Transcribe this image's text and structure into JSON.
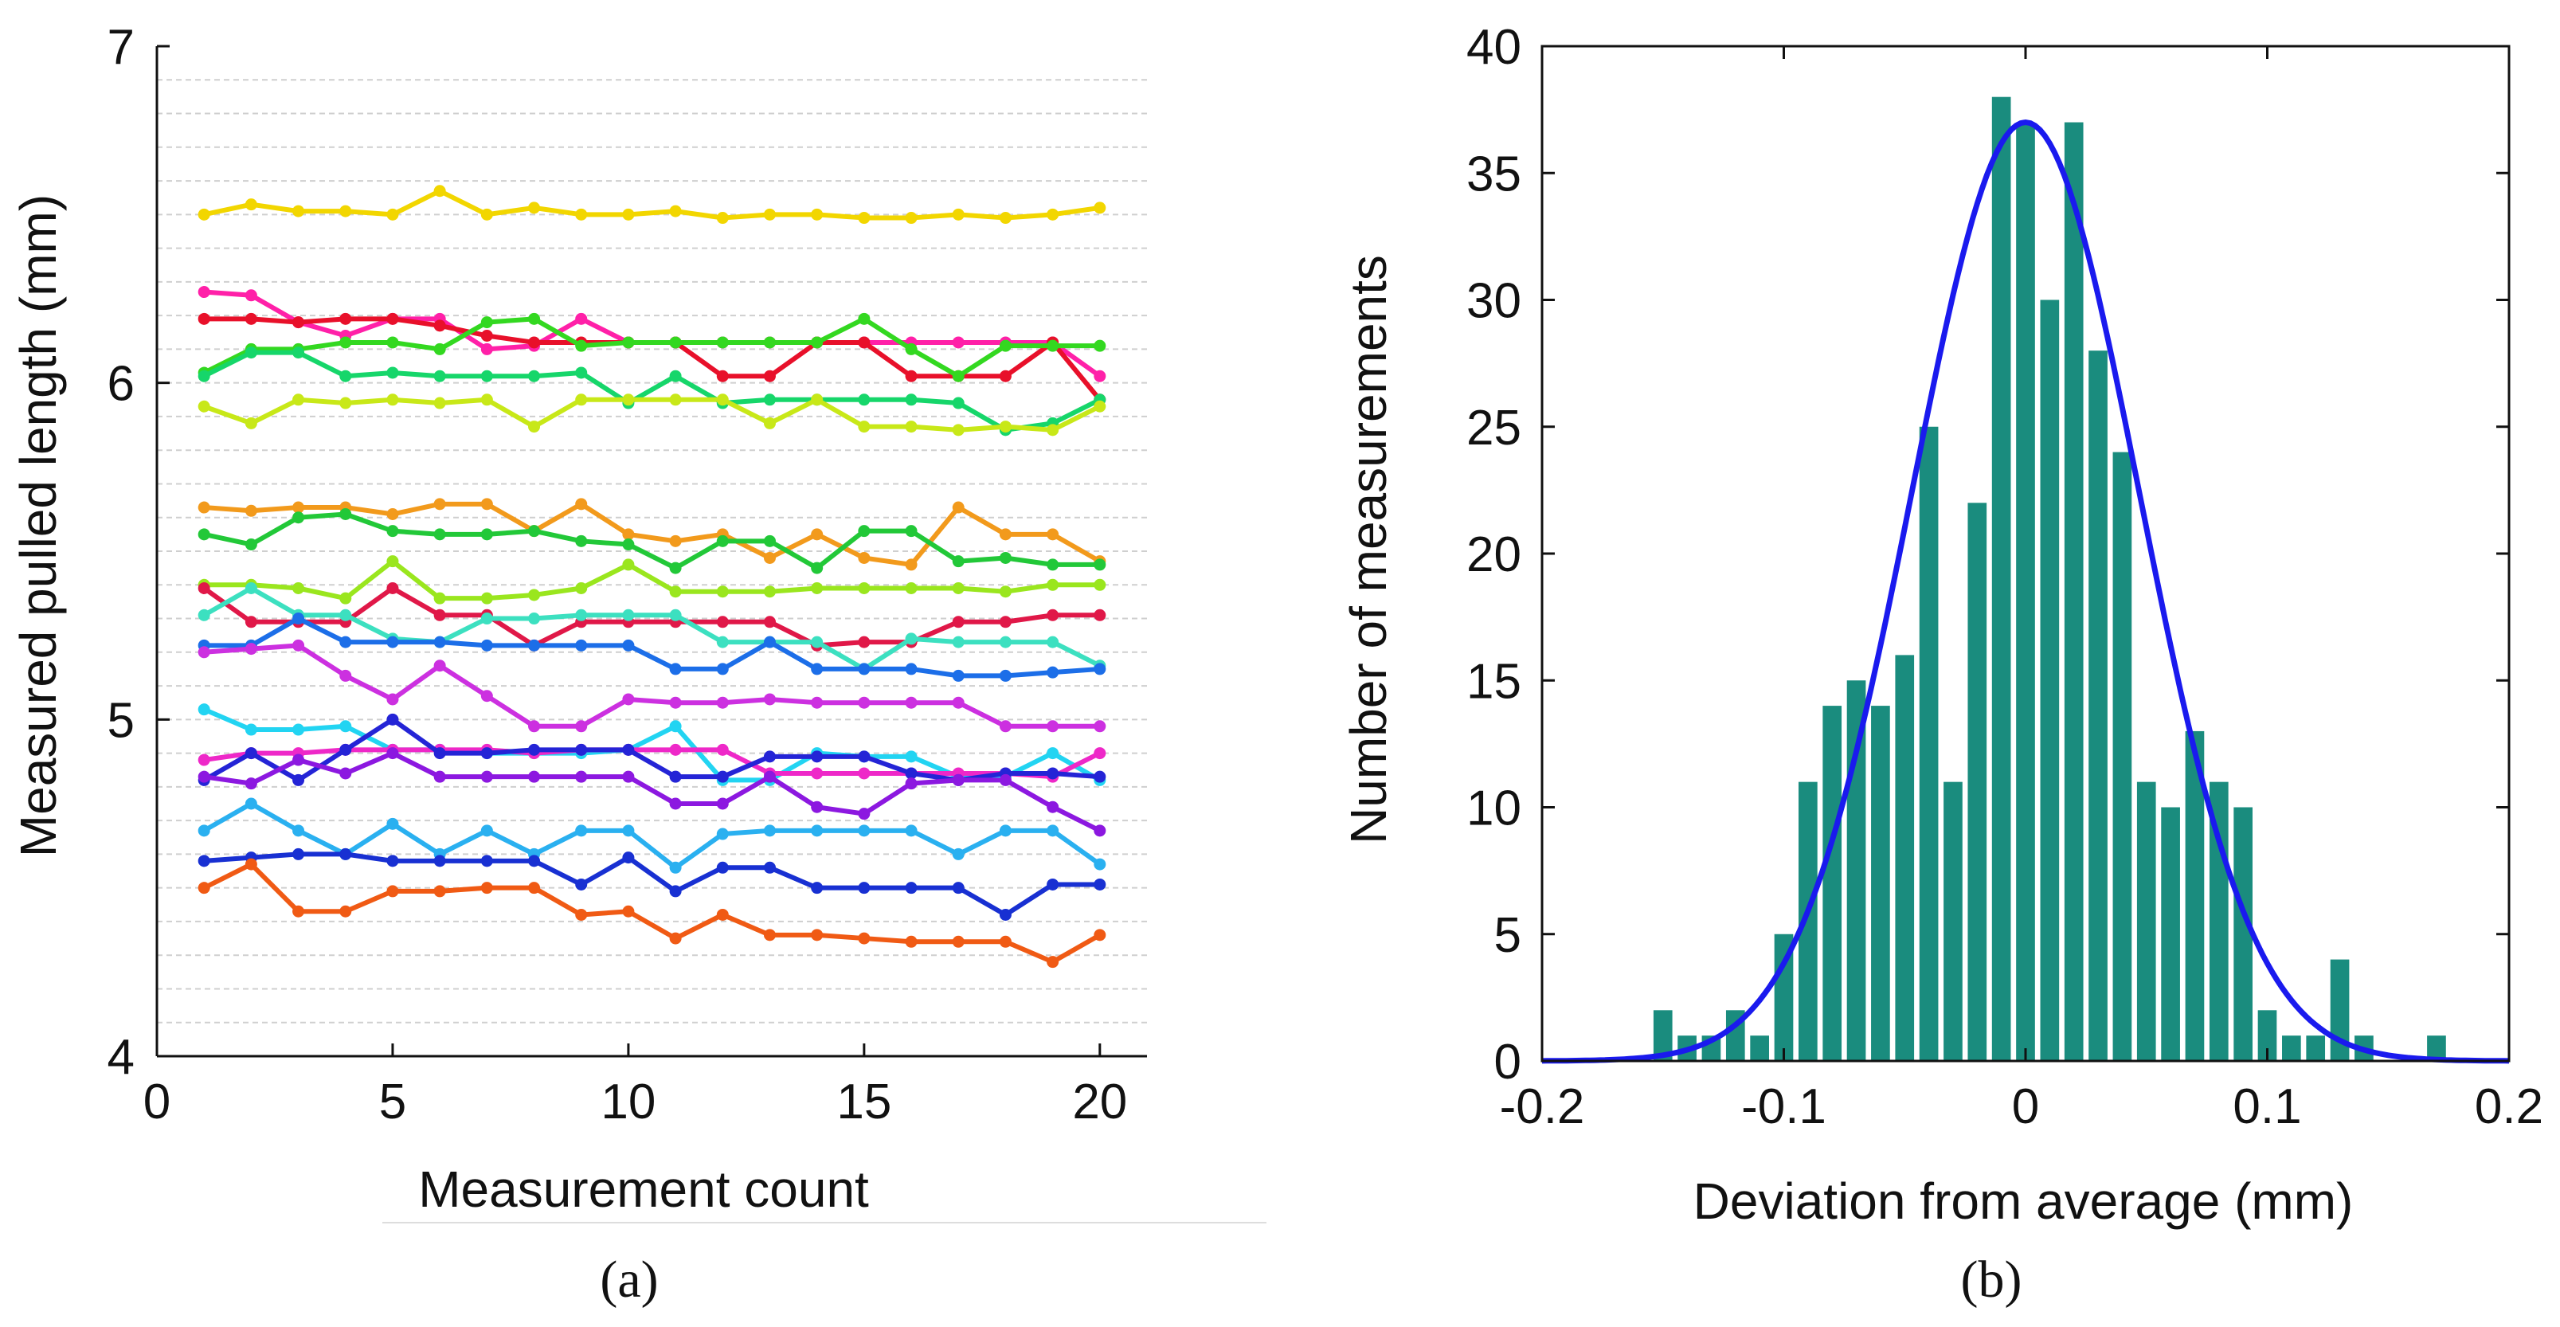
{
  "chart_data": [
    {
      "panel": "a",
      "panel_label": "(a)",
      "type": "line",
      "xlabel": "Measurement count",
      "ylabel": "Measured pulled length (mm)",
      "xlim": [
        0,
        21
      ],
      "ylim": [
        4,
        7
      ],
      "xticks": [
        0,
        5,
        10,
        15,
        20
      ],
      "yticks": [
        4,
        5,
        6,
        7
      ],
      "grid": "horizontal dashed",
      "x": [
        1,
        2,
        3,
        4,
        5,
        6,
        7,
        8,
        9,
        10,
        11,
        12,
        13,
        14,
        15,
        16,
        17,
        18,
        19,
        20
      ],
      "series": [
        {
          "name": "yellow",
          "color": "#f2d600",
          "values": [
            6.5,
            6.53,
            6.51,
            6.51,
            6.5,
            6.57,
            6.5,
            6.52,
            6.5,
            6.5,
            6.51,
            6.49,
            6.5,
            6.5,
            6.49,
            6.49,
            6.5,
            6.49,
            6.5,
            6.52
          ]
        },
        {
          "name": "magenta",
          "color": "#ff20a8",
          "values": [
            6.27,
            6.26,
            6.18,
            6.14,
            6.19,
            6.19,
            6.1,
            6.11,
            6.19,
            6.12,
            6.12,
            6.12,
            6.12,
            6.12,
            6.12,
            6.12,
            6.12,
            6.12,
            6.12,
            6.02
          ]
        },
        {
          "name": "red",
          "color": "#e8102a",
          "values": [
            6.19,
            6.19,
            6.18,
            6.19,
            6.19,
            6.17,
            6.14,
            6.12,
            6.12,
            6.12,
            6.12,
            6.02,
            6.02,
            6.12,
            6.12,
            6.02,
            6.02,
            6.02,
            6.12,
            5.95
          ]
        },
        {
          "name": "green",
          "color": "#33d820",
          "values": [
            6.03,
            6.1,
            6.1,
            6.12,
            6.12,
            6.1,
            6.18,
            6.19,
            6.11,
            6.12,
            6.12,
            6.12,
            6.12,
            6.12,
            6.19,
            6.1,
            6.02,
            6.11,
            6.11,
            6.11
          ]
        },
        {
          "name": "spring-green",
          "color": "#16d66a",
          "values": [
            6.02,
            6.09,
            6.09,
            6.02,
            6.03,
            6.02,
            6.02,
            6.02,
            6.03,
            5.94,
            6.02,
            5.94,
            5.95,
            5.95,
            5.95,
            5.95,
            5.94,
            5.86,
            5.88,
            5.95
          ]
        },
        {
          "name": "yellow-green",
          "color": "#c8e818",
          "values": [
            5.93,
            5.88,
            5.95,
            5.94,
            5.95,
            5.94,
            5.95,
            5.87,
            5.95,
            5.95,
            5.95,
            5.95,
            5.88,
            5.95,
            5.87,
            5.87,
            5.86,
            5.87,
            5.86,
            5.93
          ]
        },
        {
          "name": "orange",
          "color": "#f29a1c",
          "values": [
            5.63,
            5.62,
            5.63,
            5.63,
            5.61,
            5.64,
            5.64,
            5.56,
            5.64,
            5.55,
            5.53,
            5.55,
            5.48,
            5.55,
            5.48,
            5.46,
            5.63,
            5.55,
            5.55,
            5.47
          ]
        },
        {
          "name": "green-2",
          "color": "#22c838",
          "values": [
            5.55,
            5.52,
            5.6,
            5.61,
            5.56,
            5.55,
            5.55,
            5.56,
            5.53,
            5.52,
            5.45,
            5.53,
            5.53,
            5.45,
            5.56,
            5.56,
            5.47,
            5.48,
            5.46,
            5.46
          ]
        },
        {
          "name": "lime",
          "color": "#9ae61e",
          "values": [
            5.4,
            5.4,
            5.39,
            5.36,
            5.47,
            5.36,
            5.36,
            5.37,
            5.39,
            5.46,
            5.38,
            5.38,
            5.38,
            5.39,
            5.39,
            5.39,
            5.39,
            5.38,
            5.4,
            5.4
          ]
        },
        {
          "name": "crimson",
          "color": "#e01848",
          "values": [
            5.39,
            5.29,
            5.29,
            5.29,
            5.39,
            5.31,
            5.31,
            5.22,
            5.29,
            5.29,
            5.29,
            5.29,
            5.29,
            5.22,
            5.23,
            5.23,
            5.29,
            5.29,
            5.31,
            5.31
          ]
        },
        {
          "name": "turquoise",
          "color": "#3ce0c0",
          "values": [
            5.31,
            5.39,
            5.31,
            5.31,
            5.24,
            5.23,
            5.3,
            5.3,
            5.31,
            5.31,
            5.31,
            5.23,
            5.23,
            5.23,
            5.15,
            5.24,
            5.23,
            5.23,
            5.23,
            5.16
          ]
        },
        {
          "name": "azure",
          "color": "#1c6ee8",
          "values": [
            5.22,
            5.22,
            5.3,
            5.23,
            5.23,
            5.23,
            5.22,
            5.22,
            5.22,
            5.22,
            5.15,
            5.15,
            5.23,
            5.15,
            5.15,
            5.15,
            5.13,
            5.13,
            5.14,
            5.15
          ]
        },
        {
          "name": "violet",
          "color": "#cc30e0",
          "values": [
            5.2,
            5.21,
            5.22,
            5.13,
            5.06,
            5.16,
            5.07,
            4.98,
            4.98,
            5.06,
            5.05,
            5.05,
            5.06,
            5.05,
            5.05,
            5.05,
            5.05,
            4.98,
            4.98,
            4.98
          ]
        },
        {
          "name": "cyan",
          "color": "#22d4f2",
          "values": [
            5.03,
            4.97,
            4.97,
            4.98,
            4.91,
            4.91,
            4.9,
            4.9,
            4.9,
            4.91,
            4.98,
            4.82,
            4.82,
            4.9,
            4.89,
            4.89,
            4.83,
            4.83,
            4.9,
            4.82
          ]
        },
        {
          "name": "pink",
          "color": "#ee28c8",
          "values": [
            4.88,
            4.9,
            4.9,
            4.91,
            4.91,
            4.91,
            4.91,
            4.9,
            4.91,
            4.91,
            4.91,
            4.91,
            4.84,
            4.84,
            4.84,
            4.84,
            4.84,
            4.84,
            4.83,
            4.9
          ]
        },
        {
          "name": "blue",
          "color": "#2424d6",
          "values": [
            4.82,
            4.9,
            4.82,
            4.91,
            5.0,
            4.9,
            4.9,
            4.91,
            4.91,
            4.91,
            4.83,
            4.83,
            4.89,
            4.89,
            4.89,
            4.84,
            4.82,
            4.84,
            4.84,
            4.83
          ]
        },
        {
          "name": "purple",
          "color": "#8c18e0",
          "values": [
            4.83,
            4.81,
            4.88,
            4.84,
            4.9,
            4.83,
            4.83,
            4.83,
            4.83,
            4.83,
            4.75,
            4.75,
            4.83,
            4.74,
            4.72,
            4.81,
            4.82,
            4.82,
            4.74,
            4.67
          ]
        },
        {
          "name": "sky-blue",
          "color": "#2ab0f0",
          "values": [
            4.67,
            4.75,
            4.67,
            4.6,
            4.69,
            4.6,
            4.67,
            4.6,
            4.67,
            4.67,
            4.56,
            4.66,
            4.67,
            4.67,
            4.67,
            4.67,
            4.6,
            4.67,
            4.67,
            4.57
          ]
        },
        {
          "name": "navy-blue",
          "color": "#1830d2",
          "values": [
            4.58,
            4.59,
            4.6,
            4.6,
            4.58,
            4.58,
            4.58,
            4.58,
            4.51,
            4.59,
            4.49,
            4.56,
            4.56,
            4.5,
            4.5,
            4.5,
            4.5,
            4.42,
            4.51,
            4.51
          ]
        },
        {
          "name": "dark-orange",
          "color": "#f05a14",
          "values": [
            4.5,
            4.57,
            4.43,
            4.43,
            4.49,
            4.49,
            4.5,
            4.5,
            4.42,
            4.43,
            4.35,
            4.42,
            4.36,
            4.36,
            4.35,
            4.34,
            4.34,
            4.34,
            4.28,
            4.36
          ]
        }
      ]
    },
    {
      "panel": "b",
      "panel_label": "(b)",
      "type": "bar",
      "subtype": "histogram with fitted normal curve",
      "xlabel": "Deviation from average (mm)",
      "ylabel": "Number of measurements",
      "xlim": [
        -0.2,
        0.2
      ],
      "ylim": [
        0,
        40
      ],
      "xticks": [
        -0.2,
        -0.1,
        0,
        0.1,
        0.2
      ],
      "xtick_labels": [
        "-0.2",
        "-0.1",
        "0",
        "0.1",
        "0.2"
      ],
      "yticks": [
        0,
        5,
        10,
        15,
        20,
        25,
        30,
        35,
        40
      ],
      "bar_color": "#1a8c7e",
      "bin_width": 0.01,
      "categories": [
        -0.15,
        -0.14,
        -0.13,
        -0.12,
        -0.11,
        -0.1,
        -0.09,
        -0.08,
        -0.07,
        -0.06,
        -0.05,
        -0.04,
        -0.03,
        -0.02,
        -0.01,
        0.0,
        0.01,
        0.02,
        0.03,
        0.04,
        0.05,
        0.06,
        0.07,
        0.08,
        0.09,
        0.1,
        0.11,
        0.12,
        0.13,
        0.14,
        0.15,
        0.16,
        0.17
      ],
      "values": [
        2,
        1,
        1,
        2,
        1,
        5,
        11,
        14,
        15,
        14,
        16,
        25,
        11,
        22,
        38,
        37,
        30,
        37,
        28,
        24,
        11,
        10,
        13,
        11,
        10,
        2,
        1,
        1,
        4,
        1,
        0,
        0,
        1
      ],
      "fit": {
        "name": "normal fit",
        "color": "#1a1aee",
        "mean": 0.0,
        "peak": 37,
        "sigma": 0.047
      }
    }
  ]
}
